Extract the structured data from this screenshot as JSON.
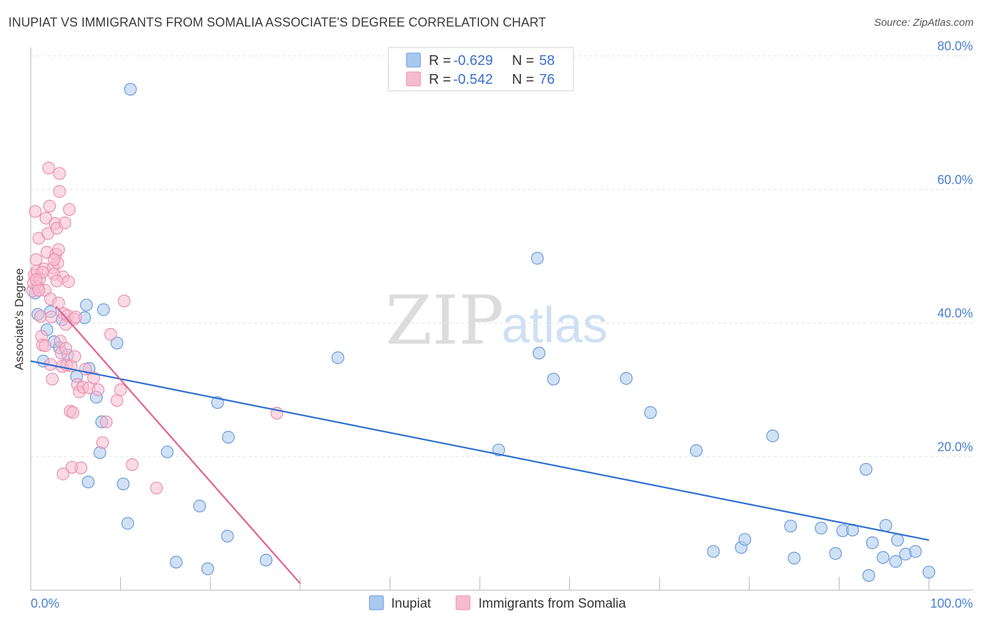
{
  "header": {
    "title": "INUPIAT VS IMMIGRANTS FROM SOMALIA ASSOCIATE'S DEGREE CORRELATION CHART",
    "source": "Source: ZipAtlas.com"
  },
  "watermark": {
    "zip": "ZIP",
    "atlas": "atlas"
  },
  "chart_data": {
    "type": "scatter",
    "title": "INUPIAT VS IMMIGRANTS FROM SOMALIA ASSOCIATE'S DEGREE CORRELATION CHART",
    "xlabel": "",
    "ylabel": "Associate's Degree",
    "xlim": [
      0,
      100
    ],
    "ylim": [
      0,
      80
    ],
    "x_tick_labels": [
      "0.0%",
      "100.0%"
    ],
    "y_ticks": [
      20,
      40,
      60,
      80
    ],
    "y_tick_labels": [
      "20.0%",
      "40.0%",
      "60.0%",
      "80.0%"
    ],
    "grid": true,
    "legend_position": "top-center",
    "stats": [
      {
        "series": "Inupiat",
        "r_label": "R =",
        "r": "-0.629",
        "n_label": "N =",
        "n": "58"
      },
      {
        "series": "Immigrants from Somalia",
        "r_label": "R =",
        "r": "-0.542",
        "n_label": "N =",
        "n": "76"
      }
    ],
    "series": [
      {
        "name": "Inupiat",
        "color": "#a9c8ef",
        "stroke": "#6a9ad8",
        "trend_color": "#2f6fd0",
        "trend": {
          "x": [
            0,
            100
          ],
          "y": [
            34.3,
            7.5
          ]
        },
        "points": [
          [
            0.5,
            44.5
          ],
          [
            0.8,
            41.3
          ],
          [
            1.4,
            34.3
          ],
          [
            1.8,
            39.0
          ],
          [
            2.2,
            41.7
          ],
          [
            2.6,
            37.2
          ],
          [
            3.2,
            36.3
          ],
          [
            3.5,
            40.5
          ],
          [
            4.1,
            35.2
          ],
          [
            5.1,
            32.0
          ],
          [
            6.0,
            40.8
          ],
          [
            6.2,
            42.7
          ],
          [
            6.5,
            33.2
          ],
          [
            7.3,
            28.9
          ],
          [
            7.7,
            20.6
          ],
          [
            7.9,
            25.2
          ],
          [
            8.1,
            42.0
          ],
          [
            9.6,
            37.0
          ],
          [
            11.1,
            75.0
          ],
          [
            6.4,
            16.2
          ],
          [
            10.3,
            15.9
          ],
          [
            10.8,
            10.0
          ],
          [
            15.2,
            20.7
          ],
          [
            16.2,
            4.2
          ],
          [
            18.8,
            12.6
          ],
          [
            19.7,
            3.2
          ],
          [
            20.8,
            28.1
          ],
          [
            21.9,
            8.1
          ],
          [
            22.0,
            22.9
          ],
          [
            26.2,
            4.5
          ],
          [
            34.2,
            34.8
          ],
          [
            52.1,
            21.0
          ],
          [
            56.4,
            49.7
          ],
          [
            56.6,
            35.5
          ],
          [
            58.2,
            31.6
          ],
          [
            66.3,
            31.7
          ],
          [
            69.0,
            26.6
          ],
          [
            74.1,
            20.9
          ],
          [
            76.0,
            5.8
          ],
          [
            79.1,
            6.4
          ],
          [
            79.5,
            7.6
          ],
          [
            82.6,
            23.1
          ],
          [
            84.6,
            9.6
          ],
          [
            85.0,
            4.8
          ],
          [
            88.0,
            9.3
          ],
          [
            89.6,
            5.5
          ],
          [
            90.4,
            8.9
          ],
          [
            91.5,
            9.0
          ],
          [
            93.3,
            2.2
          ],
          [
            93.7,
            7.1
          ],
          [
            93.0,
            18.1
          ],
          [
            94.9,
            4.9
          ],
          [
            95.2,
            9.7
          ],
          [
            96.3,
            4.3
          ],
          [
            96.5,
            7.5
          ],
          [
            97.4,
            5.4
          ],
          [
            98.5,
            5.8
          ],
          [
            100.0,
            2.7
          ]
        ]
      },
      {
        "name": "Immigrants from Somalia",
        "color": "#f7bbd0",
        "stroke": "#e88fb0",
        "trend_color": "#e0608e",
        "trend": {
          "x": [
            2.8,
            30.0
          ],
          "y": [
            42.5,
            1.0
          ]
        },
        "points": [
          [
            0.2,
            44.8
          ],
          [
            0.3,
            46.0
          ],
          [
            0.4,
            47.2
          ],
          [
            0.5,
            56.7
          ],
          [
            0.6,
            49.5
          ],
          [
            0.7,
            47.8
          ],
          [
            0.8,
            45.4
          ],
          [
            0.9,
            52.7
          ],
          [
            1.0,
            46.6
          ],
          [
            1.1,
            41.0
          ],
          [
            1.2,
            38.0
          ],
          [
            1.3,
            36.7
          ],
          [
            1.5,
            48.1
          ],
          [
            1.6,
            44.9
          ],
          [
            1.7,
            55.7
          ],
          [
            1.8,
            50.6
          ],
          [
            1.9,
            53.4
          ],
          [
            2.0,
            63.2
          ],
          [
            2.1,
            57.5
          ],
          [
            2.2,
            43.6
          ],
          [
            2.3,
            40.9
          ],
          [
            2.4,
            31.6
          ],
          [
            2.5,
            48.3
          ],
          [
            2.6,
            47.3
          ],
          [
            2.7,
            54.9
          ],
          [
            2.8,
            50.3
          ],
          [
            2.9,
            54.2
          ],
          [
            3.0,
            49.0
          ],
          [
            3.1,
            51.0
          ],
          [
            3.2,
            62.4
          ],
          [
            3.2,
            59.7
          ],
          [
            3.3,
            37.3
          ],
          [
            3.4,
            35.5
          ],
          [
            3.5,
            33.5
          ],
          [
            3.6,
            46.9
          ],
          [
            3.7,
            41.4
          ],
          [
            3.8,
            55.0
          ],
          [
            3.9,
            39.8
          ],
          [
            4.0,
            33.7
          ],
          [
            4.1,
            41.1
          ],
          [
            4.2,
            46.2
          ],
          [
            4.3,
            57.0
          ],
          [
            4.4,
            26.8
          ],
          [
            4.5,
            33.6
          ],
          [
            4.6,
            18.4
          ],
          [
            4.7,
            26.6
          ],
          [
            4.8,
            40.6
          ],
          [
            5.0,
            40.9
          ],
          [
            5.2,
            30.8
          ],
          [
            5.4,
            29.7
          ],
          [
            5.6,
            18.3
          ],
          [
            5.8,
            30.4
          ],
          [
            6.1,
            33.1
          ],
          [
            6.5,
            30.3
          ],
          [
            7.0,
            31.8
          ],
          [
            7.5,
            30.0
          ],
          [
            8.0,
            22.1
          ],
          [
            8.4,
            25.2
          ],
          [
            8.9,
            38.3
          ],
          [
            9.6,
            28.4
          ],
          [
            10.4,
            43.3
          ],
          [
            10.0,
            30.0
          ],
          [
            11.3,
            18.8
          ],
          [
            14.0,
            15.3
          ],
          [
            27.4,
            26.5
          ],
          [
            3.6,
            17.4
          ],
          [
            2.2,
            33.8
          ],
          [
            1.6,
            36.6
          ],
          [
            0.9,
            44.9
          ],
          [
            3.9,
            36.2
          ],
          [
            2.6,
            49.5
          ],
          [
            1.3,
            47.6
          ],
          [
            2.9,
            46.3
          ],
          [
            0.6,
            46.5
          ],
          [
            4.9,
            35.0
          ],
          [
            3.1,
            43.0
          ]
        ]
      }
    ]
  }
}
